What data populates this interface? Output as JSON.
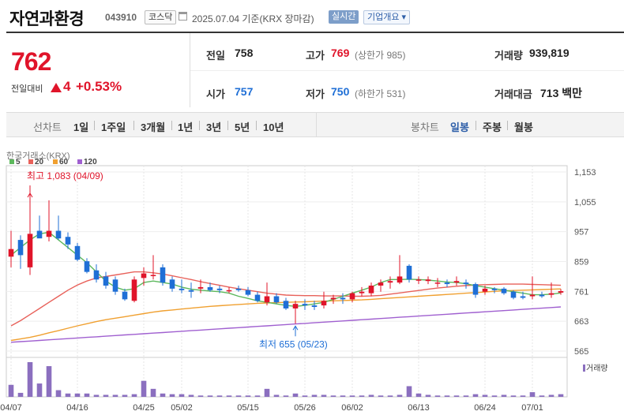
{
  "header": {
    "stock_name": "자연과환경",
    "stock_code": "043910",
    "market_badge": "코스닥",
    "date_text": "2025.07.04  기준(KRX 장마감)",
    "live_button": "실시간",
    "company_button": "기업개요 ▾"
  },
  "price": {
    "current": "762",
    "prev_label": "전일대비",
    "change": "4",
    "change_rate": "+0.53%"
  },
  "quote": {
    "prev_close_label": "전일",
    "prev_close": "758",
    "high_label": "고가",
    "high": "769",
    "upper_limit": "(상한가 985)",
    "volume_label": "거래량",
    "volume": "939,819",
    "open_label": "시가",
    "open": "757",
    "low_label": "저가",
    "low": "750",
    "lower_limit": "(하한가 531)",
    "amount_label": "거래대금",
    "amount": "713 백만"
  },
  "period_bar": {
    "line_label": "선차트",
    "line_items": [
      "1일",
      "1주일",
      "3개월",
      "1년",
      "3년",
      "5년",
      "10년"
    ],
    "candle_label": "봉차트",
    "candle_items": [
      "일봉",
      "주봉",
      "월봉"
    ],
    "candle_active": "일봉"
  },
  "colors": {
    "up": "#e0142a",
    "down": "#1f6fd6",
    "ma5": "#5cb85c",
    "ma20": "#e8615a",
    "ma60": "#f0a030",
    "ma120": "#a060d0",
    "volume": "#8b6fbf"
  },
  "chart_data": {
    "type": "candlestick",
    "source_label": "한국거래소(KRX)",
    "legend": [
      "5",
      "20",
      "60",
      "120"
    ],
    "y_ticks": [
      1153,
      1055,
      957,
      859,
      761,
      663,
      565
    ],
    "ylim": [
      565,
      1153
    ],
    "x_tick_labels": [
      "04/07",
      "04/16",
      "04/25",
      "05/02",
      "05/15",
      "05/26",
      "06/02",
      "06/13",
      "06/24",
      "07/01"
    ],
    "x_tick_index": [
      0,
      7,
      14,
      18,
      25,
      31,
      36,
      43,
      50,
      55
    ],
    "annotations": {
      "high": {
        "label": "최고 1,083 (04/09)",
        "index": 2,
        "value": 1083
      },
      "low": {
        "label": "최저 655 (05/23)",
        "index": 30,
        "value": 655
      }
    },
    "volume_label": "거래량",
    "candles": [
      {
        "o": 875,
        "h": 960,
        "l": 840,
        "c": 900
      },
      {
        "o": 930,
        "h": 945,
        "l": 835,
        "c": 880
      },
      {
        "o": 840,
        "h": 1083,
        "l": 815,
        "c": 950
      },
      {
        "o": 960,
        "h": 1010,
        "l": 940,
        "c": 935
      },
      {
        "o": 940,
        "h": 1060,
        "l": 925,
        "c": 960
      },
      {
        "o": 960,
        "h": 1010,
        "l": 930,
        "c": 935
      },
      {
        "o": 940,
        "h": 955,
        "l": 900,
        "c": 915
      },
      {
        "o": 910,
        "h": 920,
        "l": 860,
        "c": 865
      },
      {
        "o": 860,
        "h": 870,
        "l": 820,
        "c": 825
      },
      {
        "o": 830,
        "h": 850,
        "l": 790,
        "c": 800
      },
      {
        "o": 810,
        "h": 825,
        "l": 770,
        "c": 780
      },
      {
        "o": 800,
        "h": 810,
        "l": 750,
        "c": 760
      },
      {
        "o": 760,
        "h": 770,
        "l": 730,
        "c": 735
      },
      {
        "o": 730,
        "h": 810,
        "l": 725,
        "c": 800
      },
      {
        "o": 805,
        "h": 840,
        "l": 780,
        "c": 820
      },
      {
        "o": 815,
        "h": 880,
        "l": 800,
        "c": 815
      },
      {
        "o": 840,
        "h": 850,
        "l": 780,
        "c": 790
      },
      {
        "o": 800,
        "h": 810,
        "l": 760,
        "c": 770
      },
      {
        "o": 770,
        "h": 800,
        "l": 755,
        "c": 765
      },
      {
        "o": 765,
        "h": 790,
        "l": 740,
        "c": 760
      },
      {
        "o": 770,
        "h": 800,
        "l": 755,
        "c": 775
      },
      {
        "o": 775,
        "h": 790,
        "l": 760,
        "c": 765
      },
      {
        "o": 770,
        "h": 780,
        "l": 755,
        "c": 765
      },
      {
        "o": 765,
        "h": 775,
        "l": 755,
        "c": 765
      },
      {
        "o": 770,
        "h": 780,
        "l": 760,
        "c": 765
      },
      {
        "o": 765,
        "h": 775,
        "l": 745,
        "c": 750
      },
      {
        "o": 750,
        "h": 760,
        "l": 725,
        "c": 730
      },
      {
        "o": 725,
        "h": 790,
        "l": 715,
        "c": 745
      },
      {
        "o": 745,
        "h": 755,
        "l": 720,
        "c": 725
      },
      {
        "o": 730,
        "h": 740,
        "l": 700,
        "c": 705
      },
      {
        "o": 705,
        "h": 730,
        "l": 655,
        "c": 720
      },
      {
        "o": 720,
        "h": 735,
        "l": 700,
        "c": 715
      },
      {
        "o": 715,
        "h": 730,
        "l": 700,
        "c": 710
      },
      {
        "o": 715,
        "h": 760,
        "l": 705,
        "c": 730
      },
      {
        "o": 735,
        "h": 750,
        "l": 720,
        "c": 740
      },
      {
        "o": 740,
        "h": 755,
        "l": 720,
        "c": 735
      },
      {
        "o": 735,
        "h": 760,
        "l": 725,
        "c": 755
      },
      {
        "o": 755,
        "h": 775,
        "l": 745,
        "c": 760
      },
      {
        "o": 755,
        "h": 790,
        "l": 745,
        "c": 780
      },
      {
        "o": 780,
        "h": 800,
        "l": 760,
        "c": 790
      },
      {
        "o": 790,
        "h": 810,
        "l": 770,
        "c": 795
      },
      {
        "o": 790,
        "h": 880,
        "l": 785,
        "c": 810
      },
      {
        "o": 845,
        "h": 850,
        "l": 790,
        "c": 800
      },
      {
        "o": 800,
        "h": 810,
        "l": 785,
        "c": 800
      },
      {
        "o": 795,
        "h": 810,
        "l": 785,
        "c": 800
      },
      {
        "o": 790,
        "h": 805,
        "l": 775,
        "c": 790
      },
      {
        "o": 790,
        "h": 800,
        "l": 775,
        "c": 785
      },
      {
        "o": 790,
        "h": 810,
        "l": 780,
        "c": 795
      },
      {
        "o": 790,
        "h": 800,
        "l": 770,
        "c": 785
      },
      {
        "o": 785,
        "h": 790,
        "l": 740,
        "c": 750
      },
      {
        "o": 760,
        "h": 780,
        "l": 750,
        "c": 770
      },
      {
        "o": 770,
        "h": 775,
        "l": 755,
        "c": 765
      },
      {
        "o": 770,
        "h": 775,
        "l": 750,
        "c": 755
      },
      {
        "o": 760,
        "h": 765,
        "l": 735,
        "c": 740
      },
      {
        "o": 745,
        "h": 760,
        "l": 735,
        "c": 740
      },
      {
        "o": 745,
        "h": 810,
        "l": 735,
        "c": 750
      },
      {
        "o": 750,
        "h": 760,
        "l": 740,
        "c": 745
      },
      {
        "o": 750,
        "h": 790,
        "l": 740,
        "c": 755
      },
      {
        "o": 757,
        "h": 769,
        "l": 750,
        "c": 762
      }
    ],
    "volumes": [
      900,
      300,
      2600,
      1000,
      2300,
      500,
      250,
      250,
      250,
      150,
      150,
      150,
      150,
      200,
      1200,
      600,
      250,
      200,
      200,
      150,
      100,
      100,
      100,
      100,
      100,
      100,
      100,
      600,
      150,
      100,
      250,
      100,
      150,
      150,
      100,
      100,
      100,
      100,
      150,
      100,
      100,
      150,
      800,
      250,
      150,
      100,
      100,
      100,
      100,
      200,
      150,
      100,
      150,
      100,
      100,
      350,
      100,
      150,
      200
    ],
    "ma5": [
      880,
      905,
      930,
      950,
      955,
      930,
      905,
      880,
      855,
      825,
      795,
      775,
      765,
      770,
      790,
      795,
      790,
      785,
      775,
      768,
      765,
      762,
      760,
      755,
      745,
      738,
      730,
      725,
      720,
      715,
      712,
      715,
      720,
      725,
      735,
      745,
      755,
      765,
      775,
      790,
      800,
      800,
      801,
      800,
      798,
      795,
      792,
      790,
      786,
      780,
      775,
      770,
      765,
      760,
      755,
      750,
      750,
      752,
      756
    ],
    "ma20": [
      648,
      665,
      685,
      705,
      725,
      745,
      765,
      782,
      795,
      805,
      810,
      815,
      820,
      825,
      825,
      822,
      818,
      812,
      806,
      800,
      793,
      787,
      781,
      775,
      770,
      765,
      760,
      755,
      752,
      749,
      748,
      747,
      747,
      746,
      746,
      746,
      745,
      745,
      746,
      748,
      752,
      756,
      760,
      764,
      768,
      772,
      775,
      778,
      780,
      782,
      783,
      784,
      785,
      785,
      785,
      784,
      783,
      782,
      781
    ],
    "ma60": [
      600,
      605,
      610,
      617,
      625,
      632,
      640,
      648,
      655,
      662,
      668,
      673,
      678,
      683,
      688,
      693,
      697,
      700,
      703,
      706,
      709,
      712,
      714,
      716,
      718,
      720,
      722,
      723,
      724,
      725,
      726,
      727,
      728,
      729,
      730,
      731,
      732,
      733,
      735,
      737,
      739,
      741,
      743,
      745,
      747,
      749,
      751,
      753,
      755,
      757,
      759,
      761,
      763,
      764,
      765,
      766,
      767,
      768,
      769
    ],
    "ma120": [
      594,
      596,
      598,
      600,
      602,
      604,
      606,
      608,
      610,
      612,
      614,
      616,
      618,
      620,
      622,
      624,
      626,
      628,
      630,
      632,
      634,
      636,
      638,
      640,
      642,
      644,
      646,
      648,
      650,
      652,
      654,
      656,
      658,
      660,
      662,
      664,
      666,
      668,
      670,
      672,
      674,
      676,
      678,
      680,
      682,
      684,
      686,
      688,
      690,
      692,
      694,
      696,
      698,
      700,
      702,
      704,
      706,
      708,
      710
    ]
  }
}
